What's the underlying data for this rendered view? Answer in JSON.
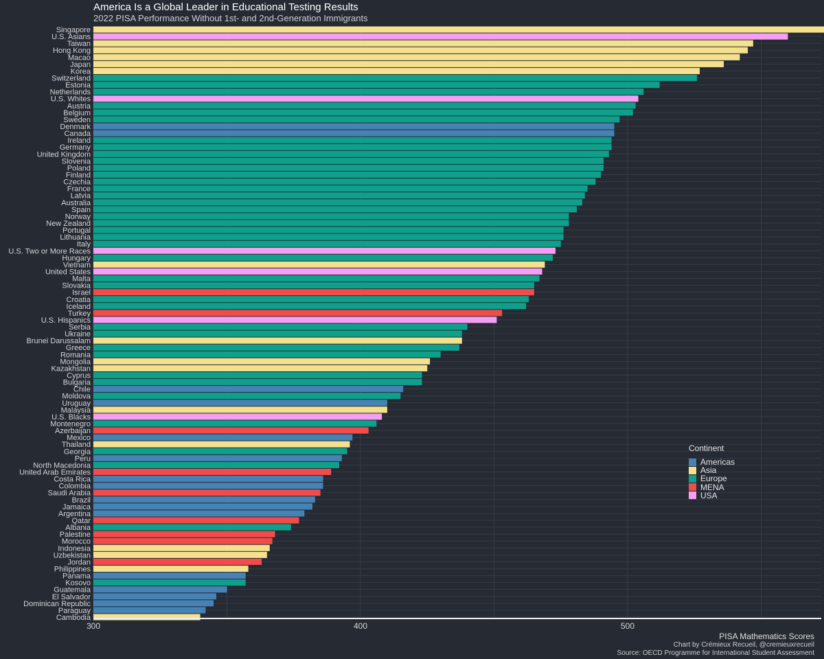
{
  "chart_data": {
    "type": "bar",
    "orientation": "horizontal",
    "title": "America Is a Global Leader in Educational Testing Results",
    "subtitle": "2022 PISA Performance Without 1st- and 2nd-Generation Immigrants",
    "xlabel": "PISA Mathematics Scores",
    "ylabel": "",
    "xlim": [
      300,
      580
    ],
    "xticks": [
      300,
      400,
      500
    ],
    "grid": true,
    "legend": {
      "title": "Continent",
      "position": "right",
      "entries": [
        {
          "name": "Americas",
          "color": "#4682b4"
        },
        {
          "name": "Asia",
          "color": "#f5e08e"
        },
        {
          "name": "Europe",
          "color": "#0fa08c"
        },
        {
          "name": "MENA",
          "color": "#f24b4b"
        },
        {
          "name": "USA",
          "color": "#f49ef4"
        }
      ]
    },
    "bars": [
      {
        "label": "Singapore",
        "value": 575,
        "group": "Asia"
      },
      {
        "label": "U.S. Asians",
        "value": 560,
        "group": "USA"
      },
      {
        "label": "Taiwan",
        "value": 547,
        "group": "Asia"
      },
      {
        "label": "Hong Kong",
        "value": 545,
        "group": "Asia"
      },
      {
        "label": "Macao",
        "value": 542,
        "group": "Asia"
      },
      {
        "label": "Japan",
        "value": 536,
        "group": "Asia"
      },
      {
        "label": "Korea",
        "value": 527,
        "group": "Asia"
      },
      {
        "label": "Switzerland",
        "value": 526,
        "group": "Europe"
      },
      {
        "label": "Estonia",
        "value": 512,
        "group": "Europe"
      },
      {
        "label": "Netherlands",
        "value": 506,
        "group": "Europe"
      },
      {
        "label": "U.S. Whites",
        "value": 504,
        "group": "USA"
      },
      {
        "label": "Austria",
        "value": 503,
        "group": "Europe"
      },
      {
        "label": "Belgium",
        "value": 502,
        "group": "Europe"
      },
      {
        "label": "Sweden",
        "value": 497,
        "group": "Europe"
      },
      {
        "label": "Denmark",
        "value": 495,
        "group": "Americas"
      },
      {
        "label": "Canada",
        "value": 495,
        "group": "Americas"
      },
      {
        "label": "Ireland",
        "value": 494,
        "group": "Europe"
      },
      {
        "label": "Germany",
        "value": 494,
        "group": "Europe"
      },
      {
        "label": "United Kingdom",
        "value": 493,
        "group": "Europe"
      },
      {
        "label": "Slovenia",
        "value": 491,
        "group": "Europe"
      },
      {
        "label": "Poland",
        "value": 491,
        "group": "Europe"
      },
      {
        "label": "Finland",
        "value": 490,
        "group": "Europe"
      },
      {
        "label": "Czechia",
        "value": 488,
        "group": "Europe"
      },
      {
        "label": "France",
        "value": 485,
        "group": "Europe"
      },
      {
        "label": "Latvia",
        "value": 484,
        "group": "Europe"
      },
      {
        "label": "Australia",
        "value": 483,
        "group": "Europe"
      },
      {
        "label": "Spain",
        "value": 481,
        "group": "Europe"
      },
      {
        "label": "Norway",
        "value": 478,
        "group": "Europe"
      },
      {
        "label": "New Zealand",
        "value": 478,
        "group": "Europe"
      },
      {
        "label": "Portugal",
        "value": 476,
        "group": "Europe"
      },
      {
        "label": "Lithuania",
        "value": 476,
        "group": "Europe"
      },
      {
        "label": "Italy",
        "value": 475,
        "group": "Europe"
      },
      {
        "label": "U.S. Two or More Races",
        "value": 473,
        "group": "USA"
      },
      {
        "label": "Hungary",
        "value": 472,
        "group": "Europe"
      },
      {
        "label": "Vietnam",
        "value": 469,
        "group": "Asia"
      },
      {
        "label": "United States",
        "value": 468,
        "group": "USA"
      },
      {
        "label": "Malta",
        "value": 467,
        "group": "Europe"
      },
      {
        "label": "Slovakia",
        "value": 465,
        "group": "Europe"
      },
      {
        "label": "Israel",
        "value": 465,
        "group": "MENA"
      },
      {
        "label": "Croatia",
        "value": 463,
        "group": "Europe"
      },
      {
        "label": "Iceland",
        "value": 462,
        "group": "Europe"
      },
      {
        "label": "Turkey",
        "value": 453,
        "group": "MENA"
      },
      {
        "label": "U.S. Hispanics",
        "value": 451,
        "group": "USA"
      },
      {
        "label": "Serbia",
        "value": 440,
        "group": "Europe"
      },
      {
        "label": "Ukraine",
        "value": 438,
        "group": "Europe"
      },
      {
        "label": "Brunei Darussalam",
        "value": 438,
        "group": "Asia"
      },
      {
        "label": "Greece",
        "value": 437,
        "group": "Europe"
      },
      {
        "label": "Romania",
        "value": 430,
        "group": "Europe"
      },
      {
        "label": "Mongolia",
        "value": 426,
        "group": "Asia"
      },
      {
        "label": "Kazakhstan",
        "value": 425,
        "group": "Asia"
      },
      {
        "label": "Cyprus",
        "value": 423,
        "group": "Europe"
      },
      {
        "label": "Bulgaria",
        "value": 423,
        "group": "Europe"
      },
      {
        "label": "Chile",
        "value": 416,
        "group": "Americas"
      },
      {
        "label": "Moldova",
        "value": 415,
        "group": "Europe"
      },
      {
        "label": "Uruguay",
        "value": 410,
        "group": "Americas"
      },
      {
        "label": "Malaysia",
        "value": 410,
        "group": "Asia"
      },
      {
        "label": "U.S. Blacks",
        "value": 408,
        "group": "USA"
      },
      {
        "label": "Montenegro",
        "value": 406,
        "group": "Europe"
      },
      {
        "label": "Azerbaijan",
        "value": 403,
        "group": "MENA"
      },
      {
        "label": "Mexico",
        "value": 397,
        "group": "Americas"
      },
      {
        "label": "Thailand",
        "value": 396,
        "group": "Asia"
      },
      {
        "label": "Georgia",
        "value": 395,
        "group": "Europe"
      },
      {
        "label": "Peru",
        "value": 393,
        "group": "Americas"
      },
      {
        "label": "North Macedonia",
        "value": 392,
        "group": "Europe"
      },
      {
        "label": "United Arab Emirates",
        "value": 389,
        "group": "MENA"
      },
      {
        "label": "Costa Rica",
        "value": 386,
        "group": "Americas"
      },
      {
        "label": "Colombia",
        "value": 386,
        "group": "Americas"
      },
      {
        "label": "Saudi Arabia",
        "value": 385,
        "group": "MENA"
      },
      {
        "label": "Brazil",
        "value": 383,
        "group": "Americas"
      },
      {
        "label": "Jamaica",
        "value": 382,
        "group": "Americas"
      },
      {
        "label": "Argentina",
        "value": 379,
        "group": "Americas"
      },
      {
        "label": "Qatar",
        "value": 377,
        "group": "MENA"
      },
      {
        "label": "Albania",
        "value": 374,
        "group": "Europe"
      },
      {
        "label": "Palestine",
        "value": 368,
        "group": "MENA"
      },
      {
        "label": "Morocco",
        "value": 367,
        "group": "MENA"
      },
      {
        "label": "Indonesia",
        "value": 366,
        "group": "Asia"
      },
      {
        "label": "Uzbekistan",
        "value": 365,
        "group": "Asia"
      },
      {
        "label": "Jordan",
        "value": 363,
        "group": "MENA"
      },
      {
        "label": "Philippines",
        "value": 358,
        "group": "Asia"
      },
      {
        "label": "Panama",
        "value": 357,
        "group": "Americas"
      },
      {
        "label": "Kosovo",
        "value": 357,
        "group": "Europe"
      },
      {
        "label": "Guatemala",
        "value": 350,
        "group": "Americas"
      },
      {
        "label": "El Salvador",
        "value": 346,
        "group": "Americas"
      },
      {
        "label": "Dominican Republic",
        "value": 345,
        "group": "Americas"
      },
      {
        "label": "Paraguay",
        "value": 342,
        "group": "Americas"
      },
      {
        "label": "Cambodia",
        "value": 340,
        "group": "Asia"
      }
    ]
  },
  "captions": {
    "credit": "Chart by Crémieux Recueil, @cremieuxrecueil",
    "source": "Source: OECD Programme for International Student Assessment"
  }
}
